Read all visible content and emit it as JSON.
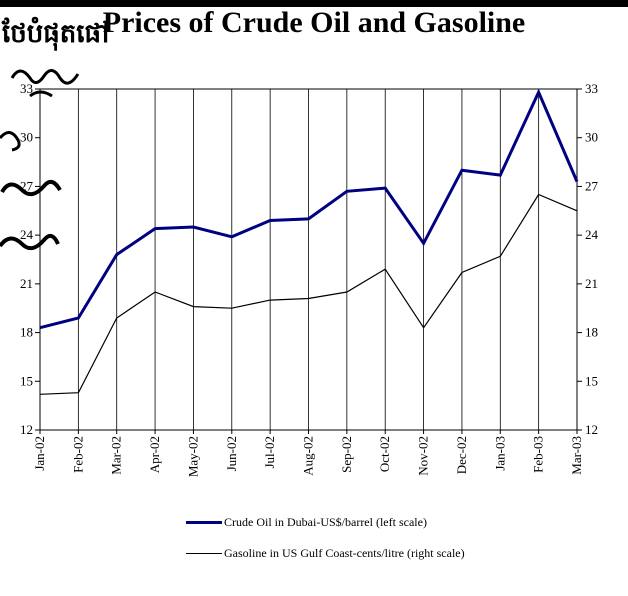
{
  "title": "Prices of Crude Oil and Gasoline",
  "khmer_fragment": "ថែបំផុតផៅ",
  "colors": {
    "crude": "#000080",
    "gasoline": "#000000",
    "grid": "#000000"
  },
  "legend": {
    "crude": "Crude Oil in Dubai-US$/barrel (left scale)",
    "gasoline": "Gasoline in US Gulf Coast-cents/litre (right scale)"
  },
  "chart_data": {
    "type": "line",
    "title": "Prices of Crude Oil and Gasoline",
    "categories": [
      "Jan-02",
      "Feb-02",
      "Mar-02",
      "Apr-02",
      "May-02",
      "Jun-02",
      "Jul-02",
      "Aug-02",
      "Sep-02",
      "Oct-02",
      "Nov-02",
      "Dec-02",
      "Jan-03",
      "Feb-03",
      "Mar-03"
    ],
    "left_ylim": [
      12,
      33
    ],
    "right_ylim": [
      12,
      33
    ],
    "y_ticks": [
      12,
      15,
      18,
      21,
      24,
      27,
      30,
      33
    ],
    "grid": true,
    "series": [
      {
        "name": "Crude Oil in Dubai-US$/barrel (left scale)",
        "axis": "left",
        "values": [
          18.3,
          18.9,
          22.8,
          24.4,
          24.5,
          23.9,
          24.9,
          25.0,
          26.7,
          26.9,
          23.5,
          28.0,
          27.7,
          32.8,
          27.3
        ]
      },
      {
        "name": "Gasoline in US Gulf Coast-cents/litre (right scale)",
        "axis": "right",
        "values": [
          14.2,
          14.3,
          18.9,
          20.5,
          19.6,
          19.5,
          20.0,
          20.1,
          20.5,
          21.9,
          18.3,
          21.7,
          22.7,
          26.5,
          25.5
        ]
      }
    ]
  }
}
